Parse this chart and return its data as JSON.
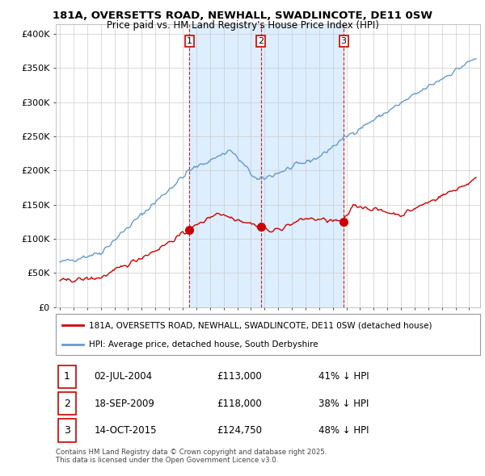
{
  "title1": "181A, OVERSETTS ROAD, NEWHALL, SWADLINCOTE, DE11 0SW",
  "title2": "Price paid vs. HM Land Registry's House Price Index (HPI)",
  "ylabel_ticks": [
    "£0",
    "£50K",
    "£100K",
    "£150K",
    "£200K",
    "£250K",
    "£300K",
    "£350K",
    "£400K"
  ],
  "ytick_vals": [
    0,
    50000,
    100000,
    150000,
    200000,
    250000,
    300000,
    350000,
    400000
  ],
  "ylim": [
    0,
    415000
  ],
  "xlim_start": 1994.7,
  "xlim_end": 2025.8,
  "transactions": [
    {
      "num": 1,
      "date": "02-JUL-2004",
      "price": 113000,
      "year": 2004.5,
      "label": "41% ↓ HPI"
    },
    {
      "num": 2,
      "date": "18-SEP-2009",
      "price": 118000,
      "year": 2009.72,
      "label": "38% ↓ HPI"
    },
    {
      "num": 3,
      "date": "14-OCT-2015",
      "price": 124750,
      "year": 2015.79,
      "label": "48% ↓ HPI"
    }
  ],
  "legend_property": "181A, OVERSETTS ROAD, NEWHALL, SWADLINCOTE, DE11 0SW (detached house)",
  "legend_hpi": "HPI: Average price, detached house, South Derbyshire",
  "footer": "Contains HM Land Registry data © Crown copyright and database right 2025.\nThis data is licensed under the Open Government Licence v3.0.",
  "property_color": "#cc0000",
  "hpi_color": "#6699cc",
  "shade_color": "#ddeeff",
  "background_color": "#ffffff",
  "grid_color": "#cccccc"
}
